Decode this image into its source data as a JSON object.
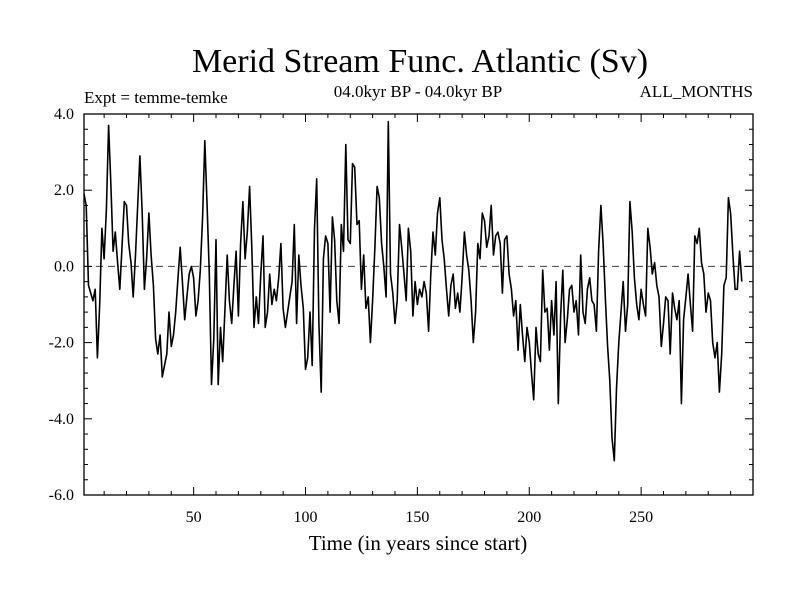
{
  "chart_data": {
    "type": "line",
    "title": "Merid Stream Func. Atlantic (Sv)",
    "subtitle_left": "Expt = temme-temke",
    "subtitle_center": "04.0kyr BP - 04.0kyr BP",
    "subtitle_right": "ALL_MONTHS",
    "xlabel": "Time (in years since start)",
    "ylabel": "",
    "xlim": [
      1,
      300
    ],
    "ylim": [
      -6.0,
      4.0
    ],
    "x_ticks": [
      50,
      100,
      150,
      200,
      250
    ],
    "x_tick_labels": [
      "50",
      "100",
      "150",
      "200",
      "250"
    ],
    "y_ticks": [
      -6.0,
      -4.0,
      -2.0,
      0.0,
      2.0,
      4.0
    ],
    "y_tick_labels": [
      "-6.0",
      "-4.0",
      "-2.0",
      "0.0",
      "2.0",
      "4.0"
    ],
    "reference_line": 0.0,
    "series": [
      {
        "name": "Merid Stream Func. Atlantic",
        "x_start": 1,
        "x_step": 1,
        "values": [
          1.9,
          1.6,
          -0.5,
          -0.7,
          -0.9,
          -0.6,
          -2.4,
          -1.0,
          1.0,
          0.2,
          1.5,
          3.7,
          2.2,
          0.4,
          0.9,
          0.1,
          -0.6,
          0.5,
          1.7,
          1.6,
          0.6,
          0.1,
          -0.8,
          0.3,
          1.6,
          2.9,
          1.4,
          -0.6,
          0.2,
          1.4,
          0.3,
          -0.5,
          -1.9,
          -2.3,
          -1.8,
          -2.9,
          -2.6,
          -2.3,
          -1.2,
          -2.1,
          -1.8,
          -1.2,
          -0.3,
          0.5,
          -0.4,
          -1.4,
          -0.8,
          -0.2,
          0.0,
          -0.3,
          -1.3,
          -0.9,
          -0.1,
          1.3,
          3.3,
          1.6,
          -0.2,
          -3.1,
          -1.9,
          0.7,
          -3.1,
          -1.6,
          -2.5,
          -1.1,
          0.3,
          -0.9,
          -1.5,
          -0.5,
          0.4,
          -1.3,
          0.6,
          1.7,
          0.2,
          0.9,
          2.1,
          0.5,
          -1.6,
          -0.8,
          -1.5,
          -0.2,
          0.8,
          -1.6,
          -1.2,
          -0.2,
          -1.0,
          -0.6,
          -0.9,
          -0.3,
          0.6,
          -1.1,
          -1.6,
          -1.2,
          -0.8,
          -0.4,
          1.1,
          -1.5,
          0.3,
          -0.5,
          -1.1,
          -2.7,
          -2.4,
          -1.2,
          -2.6,
          1.0,
          2.3,
          -1.5,
          -3.3,
          0.2,
          0.8,
          0.6,
          -1.2,
          1.3,
          0.7,
          -0.9,
          -1.5,
          1.1,
          0.4,
          3.2,
          0.7,
          0.6,
          2.7,
          2.6,
          1.1,
          1.2,
          -0.6,
          0.3,
          -1.1,
          -0.8,
          -2.0,
          -0.9,
          0.5,
          2.1,
          1.8,
          0.6,
          0.0,
          -0.8,
          3.8,
          -0.2,
          -0.7,
          -1.5,
          -0.9,
          1.1,
          0.5,
          -0.2,
          -0.9,
          1.0,
          0.4,
          -1.3,
          -0.4,
          -1.0,
          -0.6,
          -0.8,
          -0.4,
          -0.7,
          -1.7,
          -0.2,
          0.9,
          0.3,
          1.4,
          1.8,
          0.7,
          0.2,
          -0.6,
          -1.3,
          -0.5,
          -0.2,
          -1.1,
          -0.7,
          -1.2,
          -0.3,
          0.9,
          0.3,
          -0.1,
          -0.9,
          -2.0,
          -1.2,
          0.6,
          0.2,
          1.4,
          1.2,
          0.5,
          0.8,
          1.6,
          0.3,
          0.8,
          0.9,
          0.6,
          -0.7,
          0.7,
          0.8,
          -0.2,
          -0.6,
          -1.3,
          -0.9,
          -2.2,
          -1.0,
          -1.8,
          -2.5,
          -1.6,
          -2.0,
          -2.8,
          -3.5,
          -1.6,
          -2.3,
          -2.5,
          -0.1,
          -1.2,
          -1.1,
          -2.2,
          -0.9,
          -1.8,
          -0.4,
          -3.6,
          -1.3,
          -0.1,
          -2.0,
          -1.4,
          -0.6,
          -0.5,
          -1.2,
          -0.9,
          -1.8,
          0.3,
          -1.2,
          -1.5,
          -0.6,
          -0.3,
          -0.9,
          -1.0,
          -1.7,
          0.4,
          1.6,
          0.6,
          -0.8,
          -2.1,
          -3.0,
          -4.5,
          -5.1,
          -3.2,
          -2.0,
          -1.2,
          -0.4,
          -1.7,
          -1.0,
          1.7,
          0.9,
          -0.3,
          -1.0,
          -1.4,
          -0.6,
          -1.0,
          -1.3,
          1.0,
          0.5,
          -0.2,
          0.1,
          -0.5,
          -0.8,
          -2.1,
          -1.5,
          -0.8,
          -0.9,
          -2.3,
          -0.7,
          -1.1,
          -1.4,
          -0.9,
          -3.6,
          -1.4,
          -0.8,
          -0.2,
          -1.0,
          -1.7,
          0.8,
          0.6,
          1.0,
          0.1,
          -0.2,
          -1.2,
          -0.7,
          -0.9,
          -2.0,
          -2.4,
          -2.0,
          -3.3,
          -2.3,
          -0.5,
          -0.3,
          1.8,
          1.4,
          0.3,
          -0.6,
          -0.6,
          0.4,
          -0.4
        ]
      }
    ]
  }
}
